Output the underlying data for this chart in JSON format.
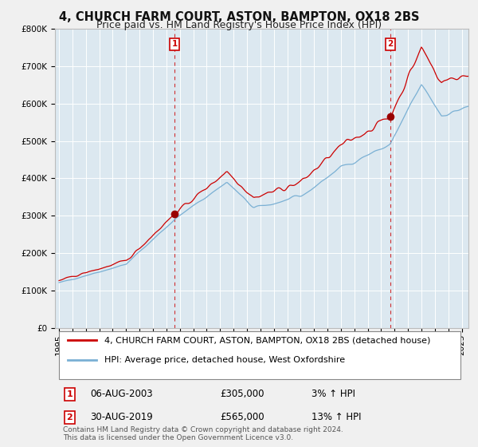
{
  "title": "4, CHURCH FARM COURT, ASTON, BAMPTON, OX18 2BS",
  "subtitle": "Price paid vs. HM Land Registry's House Price Index (HPI)",
  "ylabel_ticks": [
    "£0",
    "£100K",
    "£200K",
    "£300K",
    "£400K",
    "£500K",
    "£600K",
    "£700K",
    "£800K"
  ],
  "ytick_values": [
    0,
    100000,
    200000,
    300000,
    400000,
    500000,
    600000,
    700000,
    800000
  ],
  "ylim": [
    0,
    800000
  ],
  "xlim_start": 1994.7,
  "xlim_end": 2025.5,
  "sale1_date": 2003.6,
  "sale1_price": 305000,
  "sale2_date": 2019.67,
  "sale2_price": 565000,
  "line_color_property": "#cc0000",
  "line_color_hpi": "#7ab0d4",
  "marker_color": "#990000",
  "vline_color": "#cc0000",
  "background_color": "#dce8f0",
  "fig_background": "#f0f0f0",
  "legend_label_property": "4, CHURCH FARM COURT, ASTON, BAMPTON, OX18 2BS (detached house)",
  "legend_label_hpi": "HPI: Average price, detached house, West Oxfordshire",
  "footnote": "Contains HM Land Registry data © Crown copyright and database right 2024.\nThis data is licensed under the Open Government Licence v3.0.",
  "title_fontsize": 10.5,
  "subtitle_fontsize": 9,
  "tick_fontsize": 7.5,
  "legend_fontsize": 8,
  "annotation_fontsize": 8.5
}
